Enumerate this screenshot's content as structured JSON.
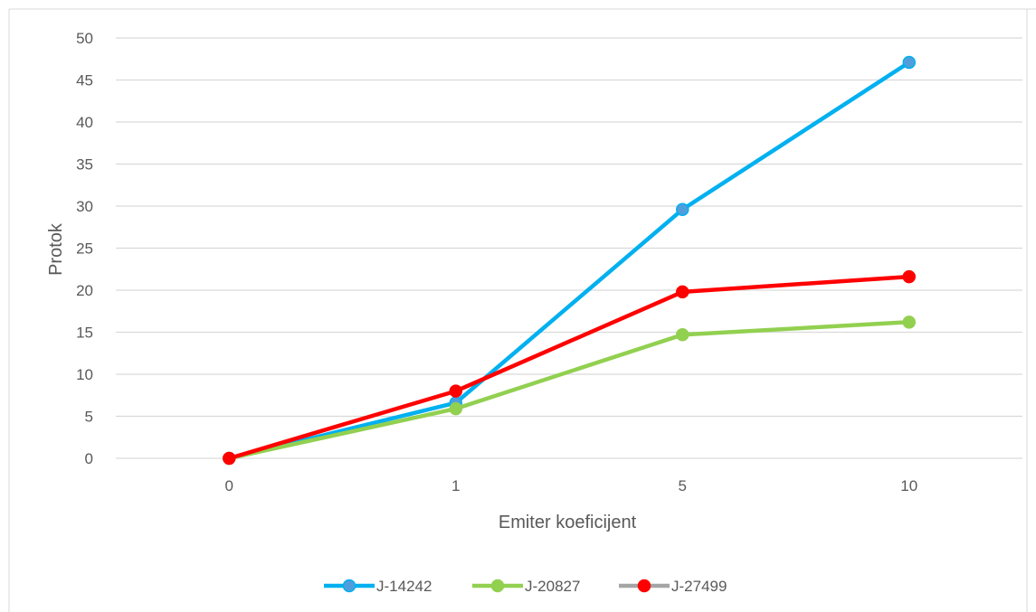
{
  "chart_data": {
    "type": "line",
    "title": "",
    "xlabel": "Emiter koeficijent",
    "ylabel": "Protok",
    "categories": [
      "0",
      "1",
      "5",
      "10"
    ],
    "ylim": [
      0,
      50
    ],
    "ytick_step": 5,
    "grid": "horizontal",
    "legend_position": "bottom",
    "series": [
      {
        "name": "J-14242",
        "values": [
          0,
          6.6,
          29.6,
          47.1
        ],
        "line_color": "#00B0F0",
        "marker_color": "#4F9EDB",
        "legend_line_color": "#00B0F0"
      },
      {
        "name": "J-20827",
        "values": [
          0,
          5.9,
          14.7,
          16.2
        ],
        "line_color": "#92D050",
        "marker_color": "#92D050",
        "legend_line_color": "#92D050"
      },
      {
        "name": "J-27499",
        "values": [
          0,
          8.0,
          19.8,
          21.6
        ],
        "line_color": "#FF0000",
        "marker_color": "#FF0000",
        "legend_line_color": "#A5A5A5"
      }
    ]
  },
  "colors": {
    "gridline": "#D9D9D9",
    "frame_border": "#D9D9D9",
    "text": "#595959"
  }
}
